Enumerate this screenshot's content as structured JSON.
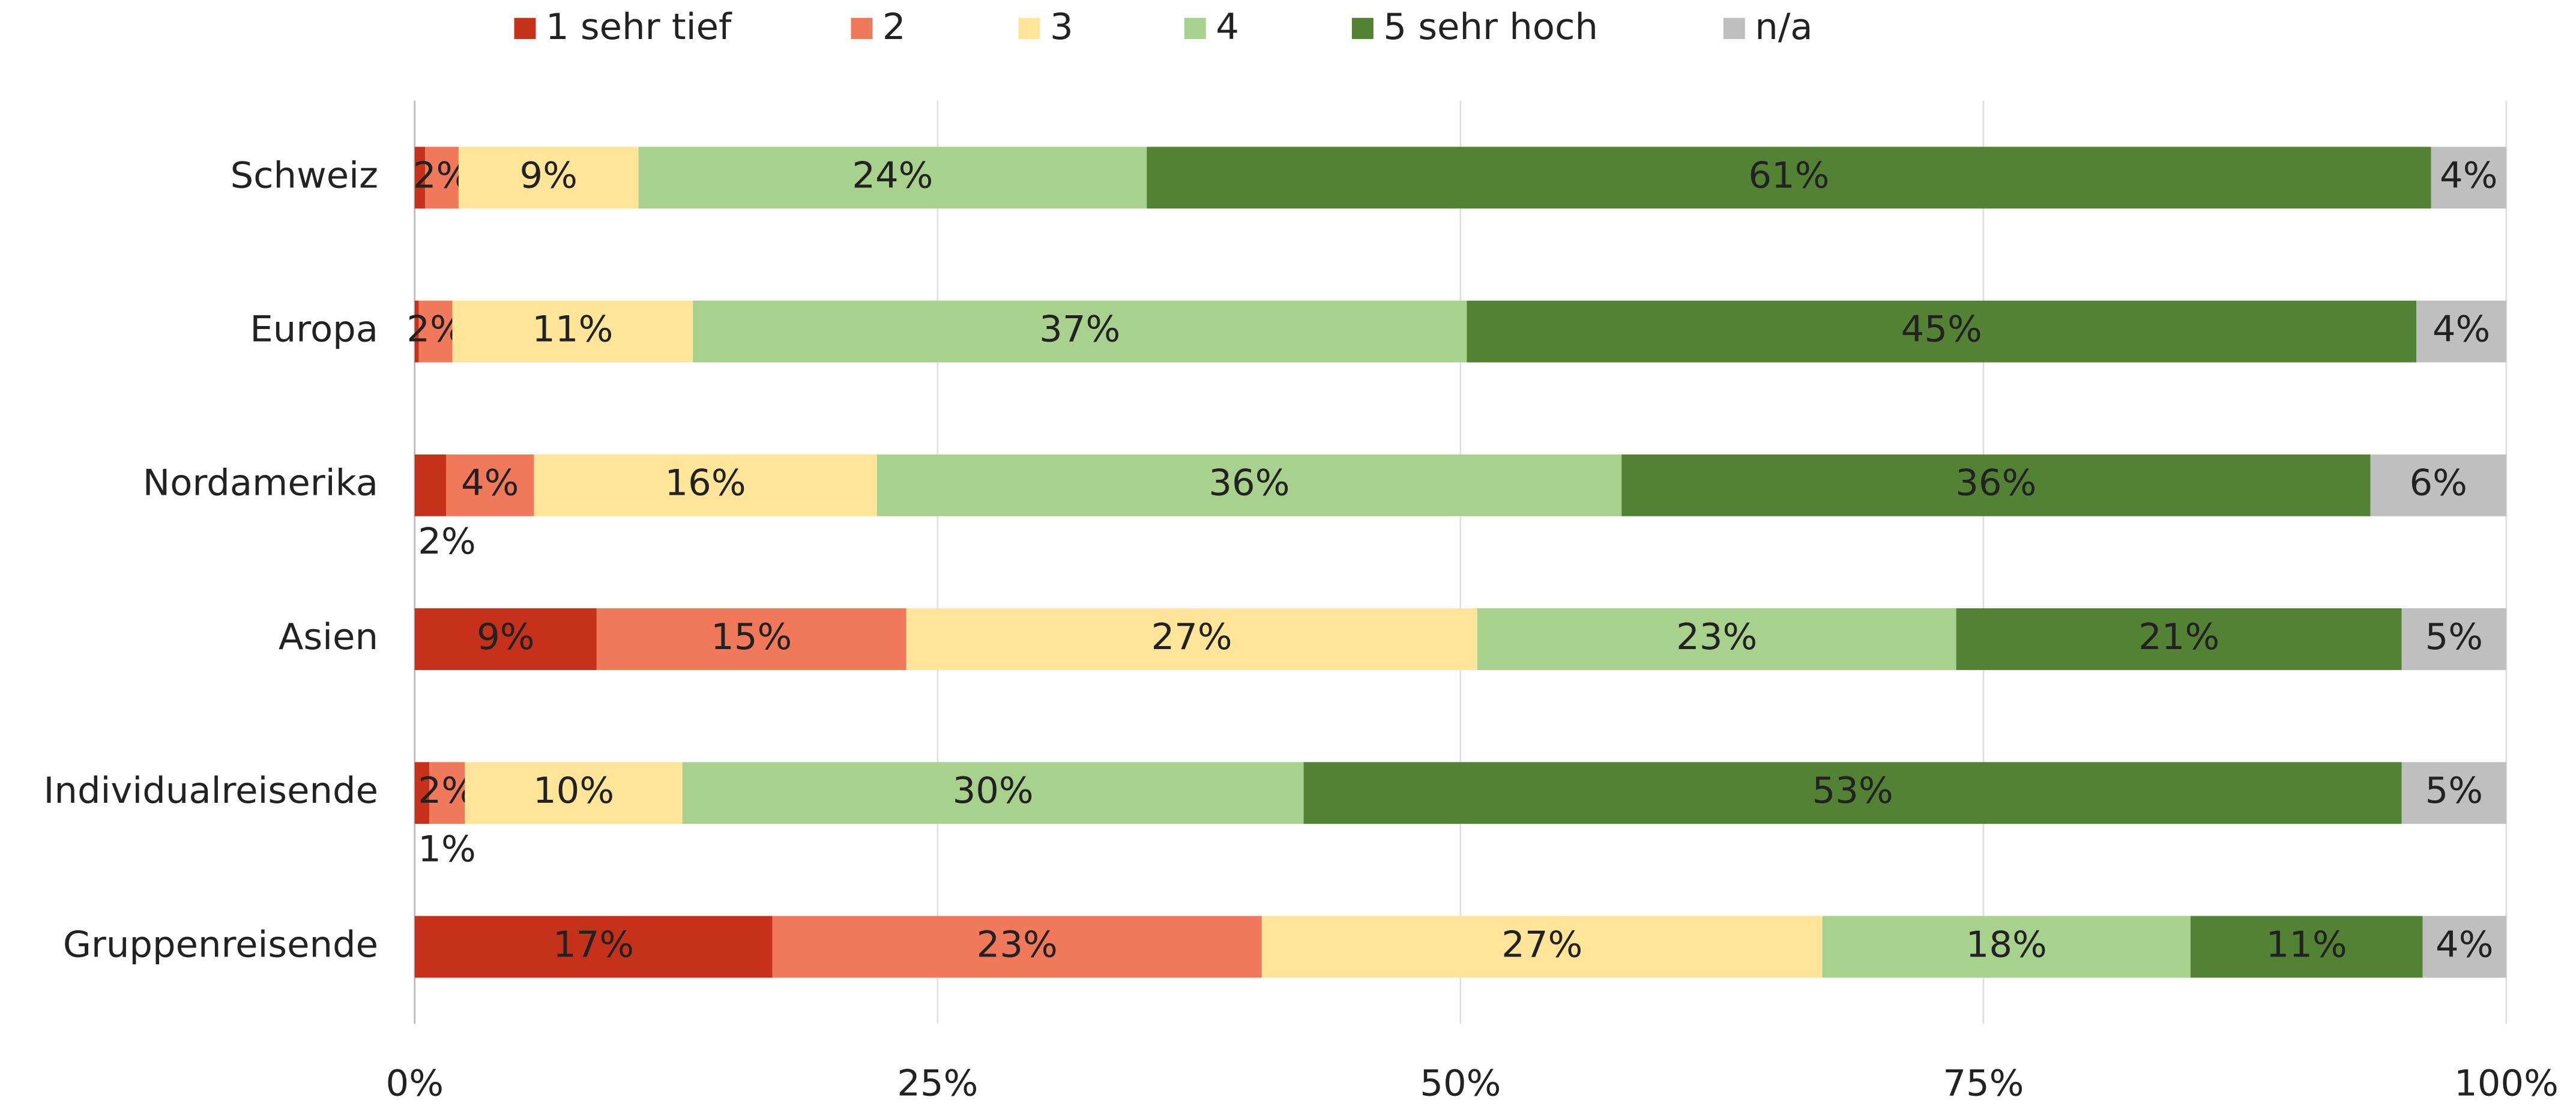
{
  "chart_data": {
    "type": "stacked-bar-horizontal",
    "categories": [
      "Schweiz",
      "Europa",
      "Nordamerika",
      "Asien",
      "Individualreisende",
      "Gruppenreisende"
    ],
    "series": [
      {
        "name": "1 sehr tief",
        "color": "#c5311a",
        "values": [
          0.5,
          0.2,
          1.5,
          8.7,
          0.7,
          17.1
        ],
        "value_labels": [
          null,
          null,
          "2%",
          "9%",
          "1%",
          "17%"
        ]
      },
      {
        "name": "2",
        "color": "#f0785b",
        "values": [
          1.6,
          1.6,
          4.2,
          14.8,
          1.7,
          23.4
        ],
        "value_labels": [
          "2%",
          "2%",
          "4%",
          "15%",
          "2%",
          "23%"
        ]
      },
      {
        "name": "3",
        "color": "#fee599",
        "values": [
          8.6,
          11.5,
          16.4,
          27.3,
          10.4,
          26.8
        ],
        "value_labels": [
          "9%",
          "11%",
          "16%",
          "27%",
          "10%",
          "27%"
        ]
      },
      {
        "name": "4",
        "color": "#a9d18e",
        "values": [
          24.3,
          37.0,
          35.6,
          22.9,
          29.7,
          17.6
        ],
        "value_labels": [
          "24%",
          "37%",
          "36%",
          "23%",
          "30%",
          "18%"
        ]
      },
      {
        "name": "5 sehr hoch",
        "color": "#548235",
        "values": [
          61.4,
          45.4,
          35.8,
          21.3,
          52.5,
          11.1
        ],
        "value_labels": [
          "61%",
          "45%",
          "36%",
          "21%",
          "53%",
          "11%"
        ]
      },
      {
        "name": "n/a",
        "color": "#bfbfbf",
        "values": [
          3.6,
          4.3,
          6.5,
          5.0,
          5.0,
          4.0
        ],
        "value_labels": [
          "4%",
          "4%",
          "6%",
          "5%",
          "5%",
          "4%"
        ]
      }
    ],
    "xlim": [
      0,
      100
    ],
    "xticks": [
      {
        "value": 0,
        "label": "0%"
      },
      {
        "value": 25,
        "label": "25%"
      },
      {
        "value": 50,
        "label": "50%"
      },
      {
        "value": 75,
        "label": "75%"
      },
      {
        "value": 100,
        "label": "100%"
      }
    ],
    "grid": true,
    "legend": "top"
  }
}
